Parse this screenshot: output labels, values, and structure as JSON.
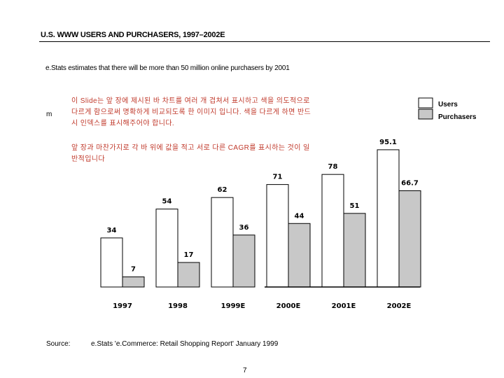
{
  "header": {
    "title": "U.S. WWW USERS AND PURCHASERS, 1997–2002E",
    "subtitle": "e.Stats estimates that there will be more than 50 million online purchasers by 2001"
  },
  "axis_unit": "m",
  "notes": [
    "이 Slide는 앞 장에 제시된 바 차트를 여러 개 겹쳐서 표시하고 색을 의도적으로 다르게 함으로써 명확하게 비교되도록 한 이미지 입니다. 색을 다르게 하면 반드시 인덱스를 표시해주어야 합니다.",
    "앞 장과 마찬가지로 각 바 위에 값을 적고 서로 다른 CAGR를 표시하는 것이 일반적입니다"
  ],
  "source": {
    "label": "Source:",
    "text": "e.Stats 'e.Commerce: Retail Shopping Report' January 1999"
  },
  "page_number": "7",
  "colors": {
    "users": "#ffffff",
    "purchasers": "#c8c8c8",
    "outline": "#000000",
    "note_text": "#c0392b"
  },
  "chart_data": {
    "type": "bar",
    "categories": [
      "1997",
      "1998",
      "1999E",
      "2000E",
      "2001E",
      "2002E"
    ],
    "series": [
      {
        "name": "Users",
        "values": [
          34,
          54,
          62,
          71,
          78,
          95.1
        ]
      },
      {
        "name": "Purchasers",
        "values": [
          7,
          17,
          36,
          44,
          51,
          66.7
        ]
      }
    ],
    "value_labels": {
      "Users": [
        "34",
        "54",
        "62",
        "71",
        "78",
        "95.1"
      ],
      "Purchasers": [
        "7",
        "17",
        "36",
        "44",
        "51",
        "66.7"
      ]
    },
    "ylim": [
      0,
      100
    ],
    "grid": false,
    "legend": "top-right",
    "title": "",
    "xlabel": "",
    "ylabel": ""
  }
}
